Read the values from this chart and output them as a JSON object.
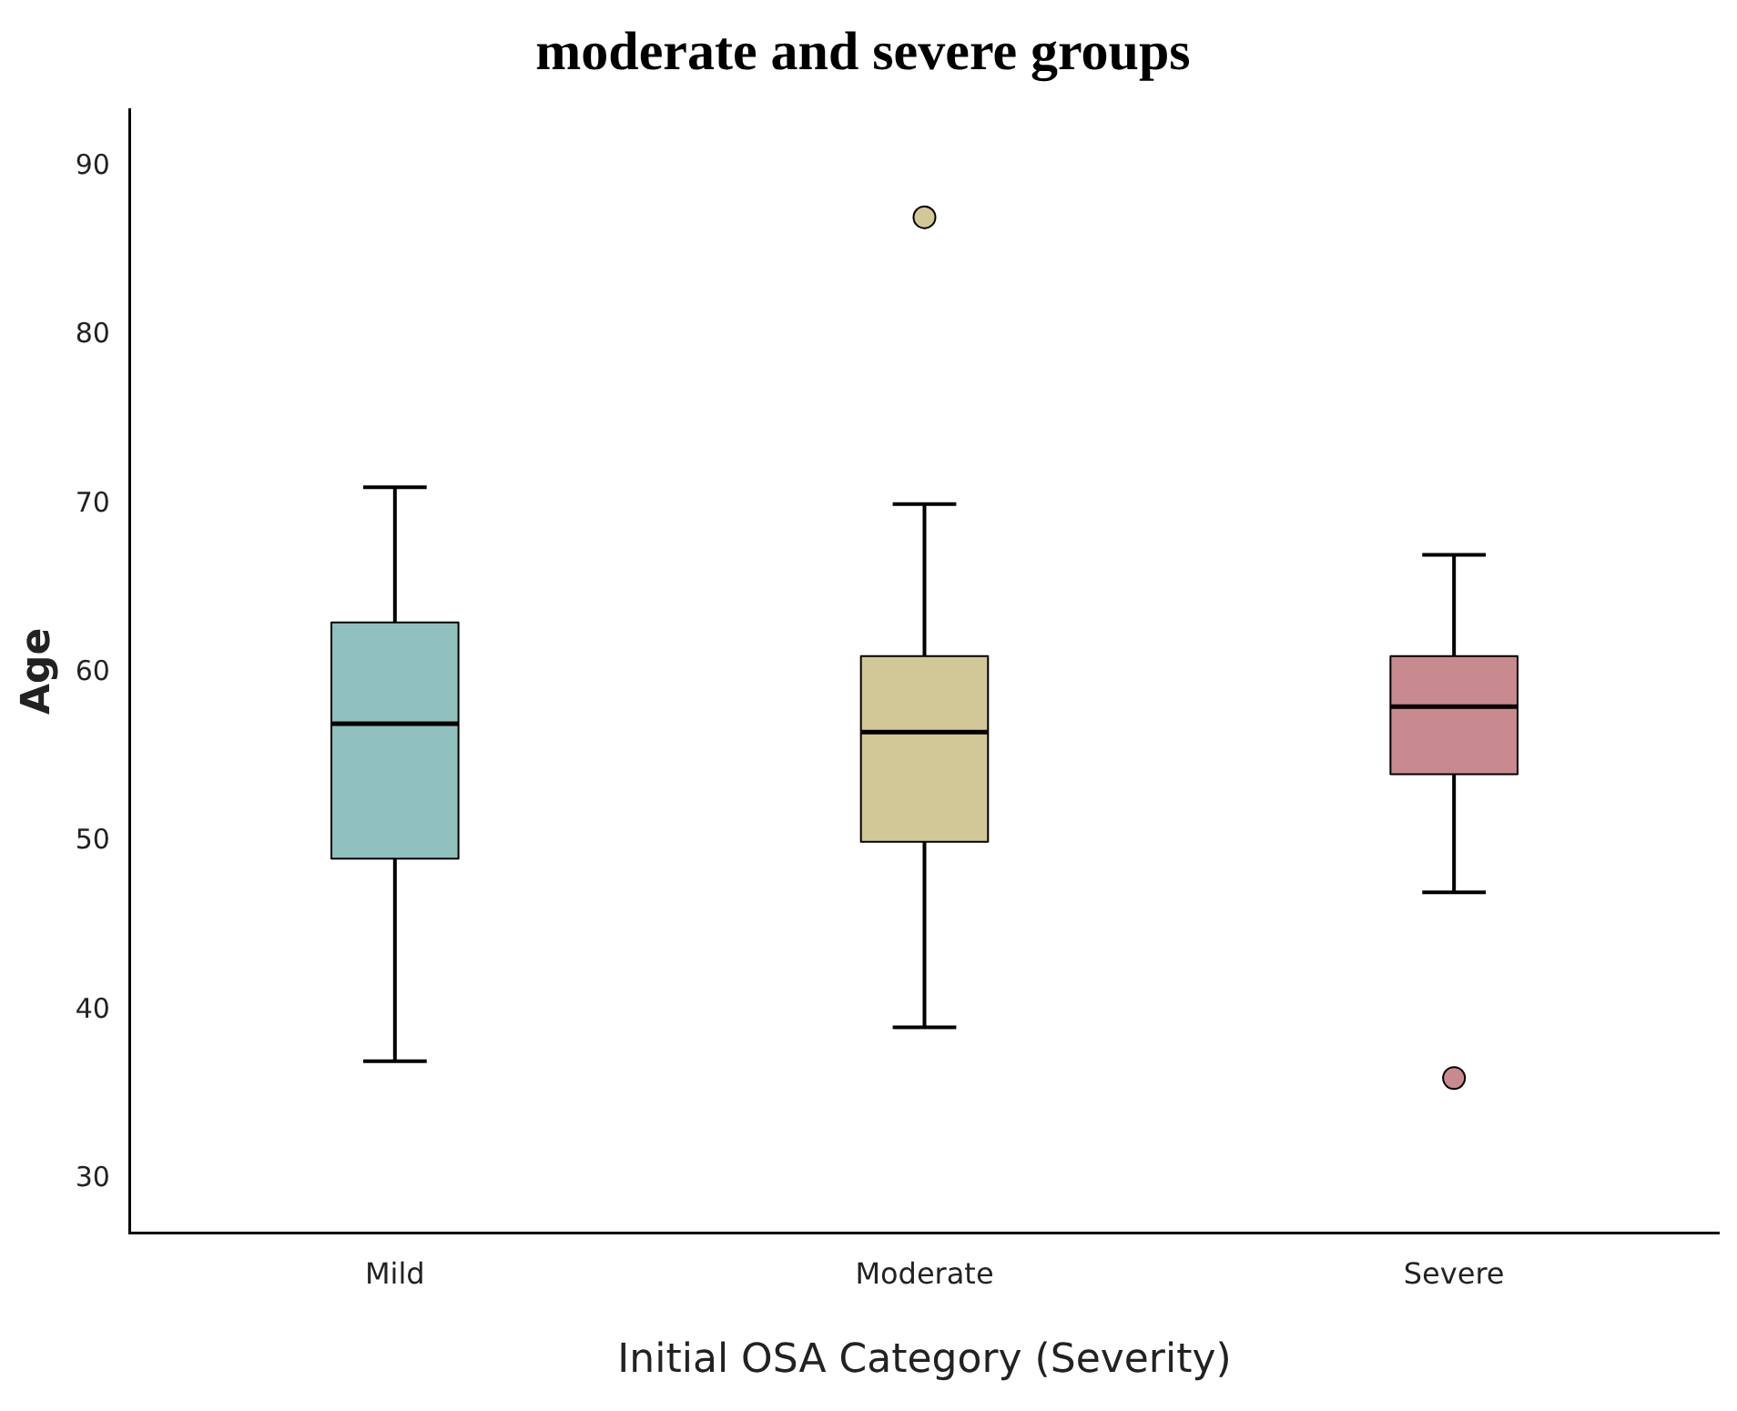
{
  "chart_data": {
    "type": "box",
    "title": "moderate and severe groups",
    "xlabel": "Initial OSA Category (Severity)",
    "ylabel": "Age",
    "categories": [
      "Mild",
      "Moderate",
      "Severe"
    ],
    "colors": [
      "#8fc0bd",
      "#d2c796",
      "#c98a8f"
    ],
    "boxes": [
      {
        "low": 37,
        "q1": 49,
        "median": 57,
        "q3": 63,
        "high": 71
      },
      {
        "low": 39,
        "q1": 50,
        "median": 56.5,
        "q3": 61,
        "high": 70,
        "outliers": [
          87
        ]
      },
      {
        "low": 47,
        "q1": 54,
        "median": 58,
        "q3": 61,
        "high": 67,
        "outliers": [
          36
        ]
      }
    ],
    "ylim": [
      26.8,
      93.4
    ],
    "yticks": [
      30,
      40,
      50,
      60,
      70,
      80,
      90
    ],
    "grid": false,
    "legend": false
  }
}
